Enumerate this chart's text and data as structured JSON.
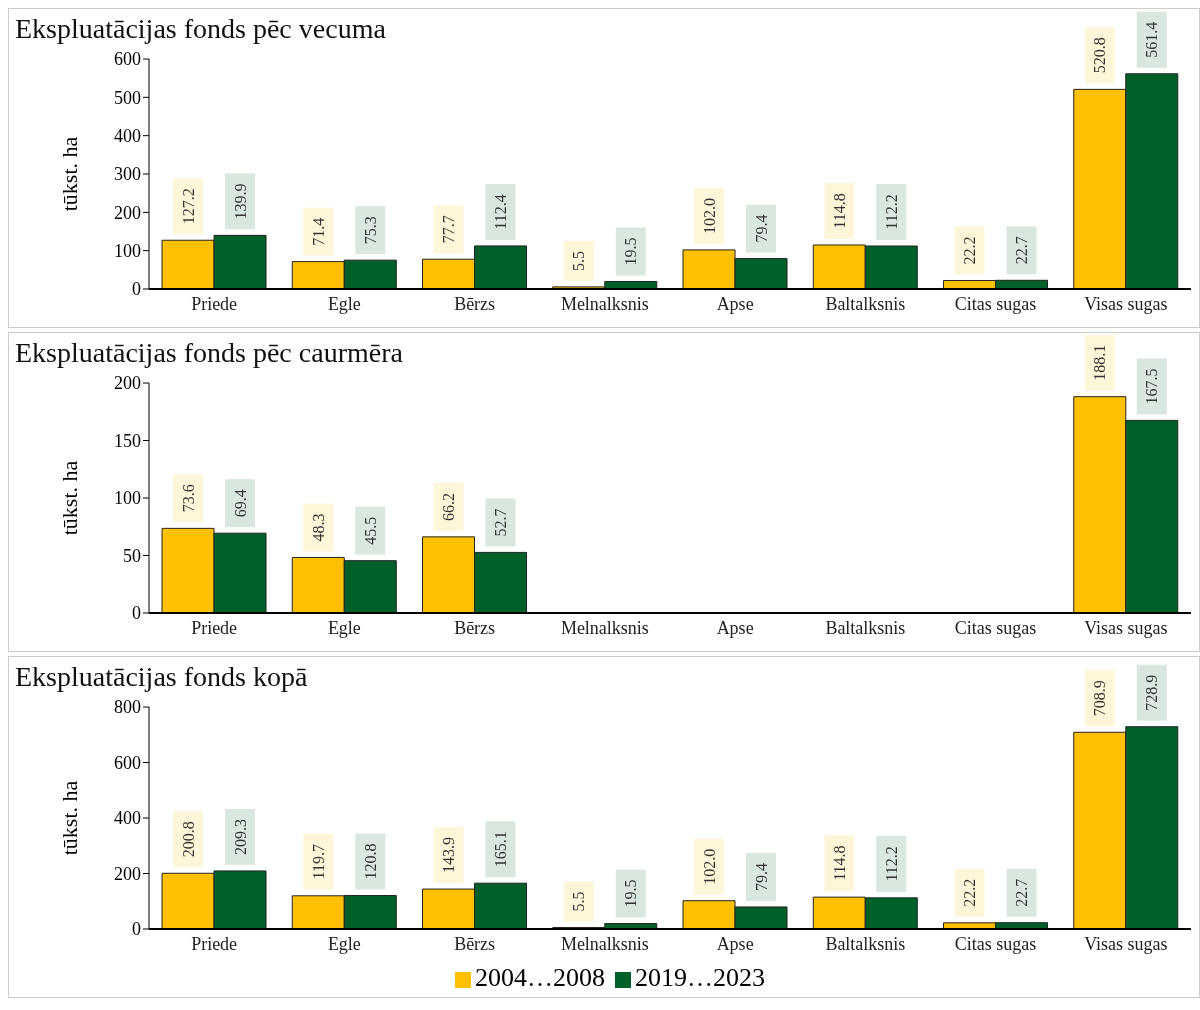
{
  "chart_data": [
    {
      "type": "bar",
      "title": "Ekspluatācijas fonds pēc vecuma",
      "ylabel": "tūkst. ha",
      "categories": [
        "Priede",
        "Egle",
        "Bērzs",
        "Melnalksnis",
        "Apse",
        "Baltalksnis",
        "Citas sugas",
        "Visas sugas"
      ],
      "series": [
        {
          "color": "#ffc000",
          "values": [
            127.2,
            71.4,
            77.7,
            5.5,
            102.0,
            114.8,
            22.2,
            520.8
          ],
          "value_labels": [
            "127.2",
            "71.4",
            "77.7",
            "5.5",
            "102.0",
            "114.8",
            "22.2",
            "520.8"
          ]
        },
        {
          "color": "#00602a",
          "values": [
            139.9,
            75.3,
            112.4,
            19.5,
            79.4,
            112.2,
            22.7,
            561.4
          ],
          "value_labels": [
            "139.9",
            "75.3",
            "112.4",
            "19.5",
            "79.4",
            "112.2",
            "22.7",
            "561.4"
          ]
        }
      ],
      "ylim": [
        0,
        600
      ],
      "yticks": [
        0,
        100,
        200,
        300,
        400,
        500,
        600
      ]
    },
    {
      "type": "bar",
      "title": "Ekspluatācijas fonds pēc caurmēra",
      "ylabel": "tūkst. ha",
      "categories": [
        "Priede",
        "Egle",
        "Bērzs",
        "Melnalksnis",
        "Apse",
        "Baltalksnis",
        "Citas sugas",
        "Visas sugas"
      ],
      "series": [
        {
          "color": "#ffc000",
          "values": [
            73.6,
            48.3,
            66.2,
            null,
            null,
            null,
            null,
            188.1
          ],
          "value_labels": [
            "73.6",
            "48.3",
            "66.2",
            null,
            null,
            null,
            null,
            "188.1"
          ]
        },
        {
          "color": "#00602a",
          "values": [
            69.4,
            45.5,
            52.7,
            null,
            null,
            null,
            null,
            167.5
          ],
          "value_labels": [
            "69.4",
            "45.5",
            "52.7",
            null,
            null,
            null,
            null,
            "167.5"
          ]
        }
      ],
      "ylim": [
        0,
        200
      ],
      "yticks": [
        0,
        50,
        100,
        150,
        200
      ]
    },
    {
      "type": "bar",
      "title": "Ekspluatācijas fonds kopā",
      "ylabel": "tūkst. ha",
      "categories": [
        "Priede",
        "Egle",
        "Bērzs",
        "Melnalksnis",
        "Apse",
        "Baltalksnis",
        "Citas sugas",
        "Visas sugas"
      ],
      "series": [
        {
          "name": "2004…2008",
          "color": "#ffc000",
          "values": [
            200.8,
            119.7,
            143.9,
            5.5,
            102.0,
            114.8,
            22.2,
            708.9
          ],
          "value_labels": [
            "200.8",
            "119.7",
            "143.9",
            "5.5",
            "102.0",
            "114.8",
            "22.2",
            "708.9"
          ]
        },
        {
          "name": "2019…2023",
          "color": "#00602a",
          "values": [
            209.3,
            120.8,
            165.1,
            19.5,
            79.4,
            112.2,
            22.7,
            728.9
          ],
          "value_labels": [
            "209.3",
            "120.8",
            "165.1",
            "19.5",
            "79.4",
            "112.2",
            "22.7",
            "728.9"
          ]
        }
      ],
      "ylim": [
        0,
        800
      ],
      "yticks": [
        0,
        200,
        400,
        600,
        800
      ],
      "legend": "bottom"
    }
  ]
}
